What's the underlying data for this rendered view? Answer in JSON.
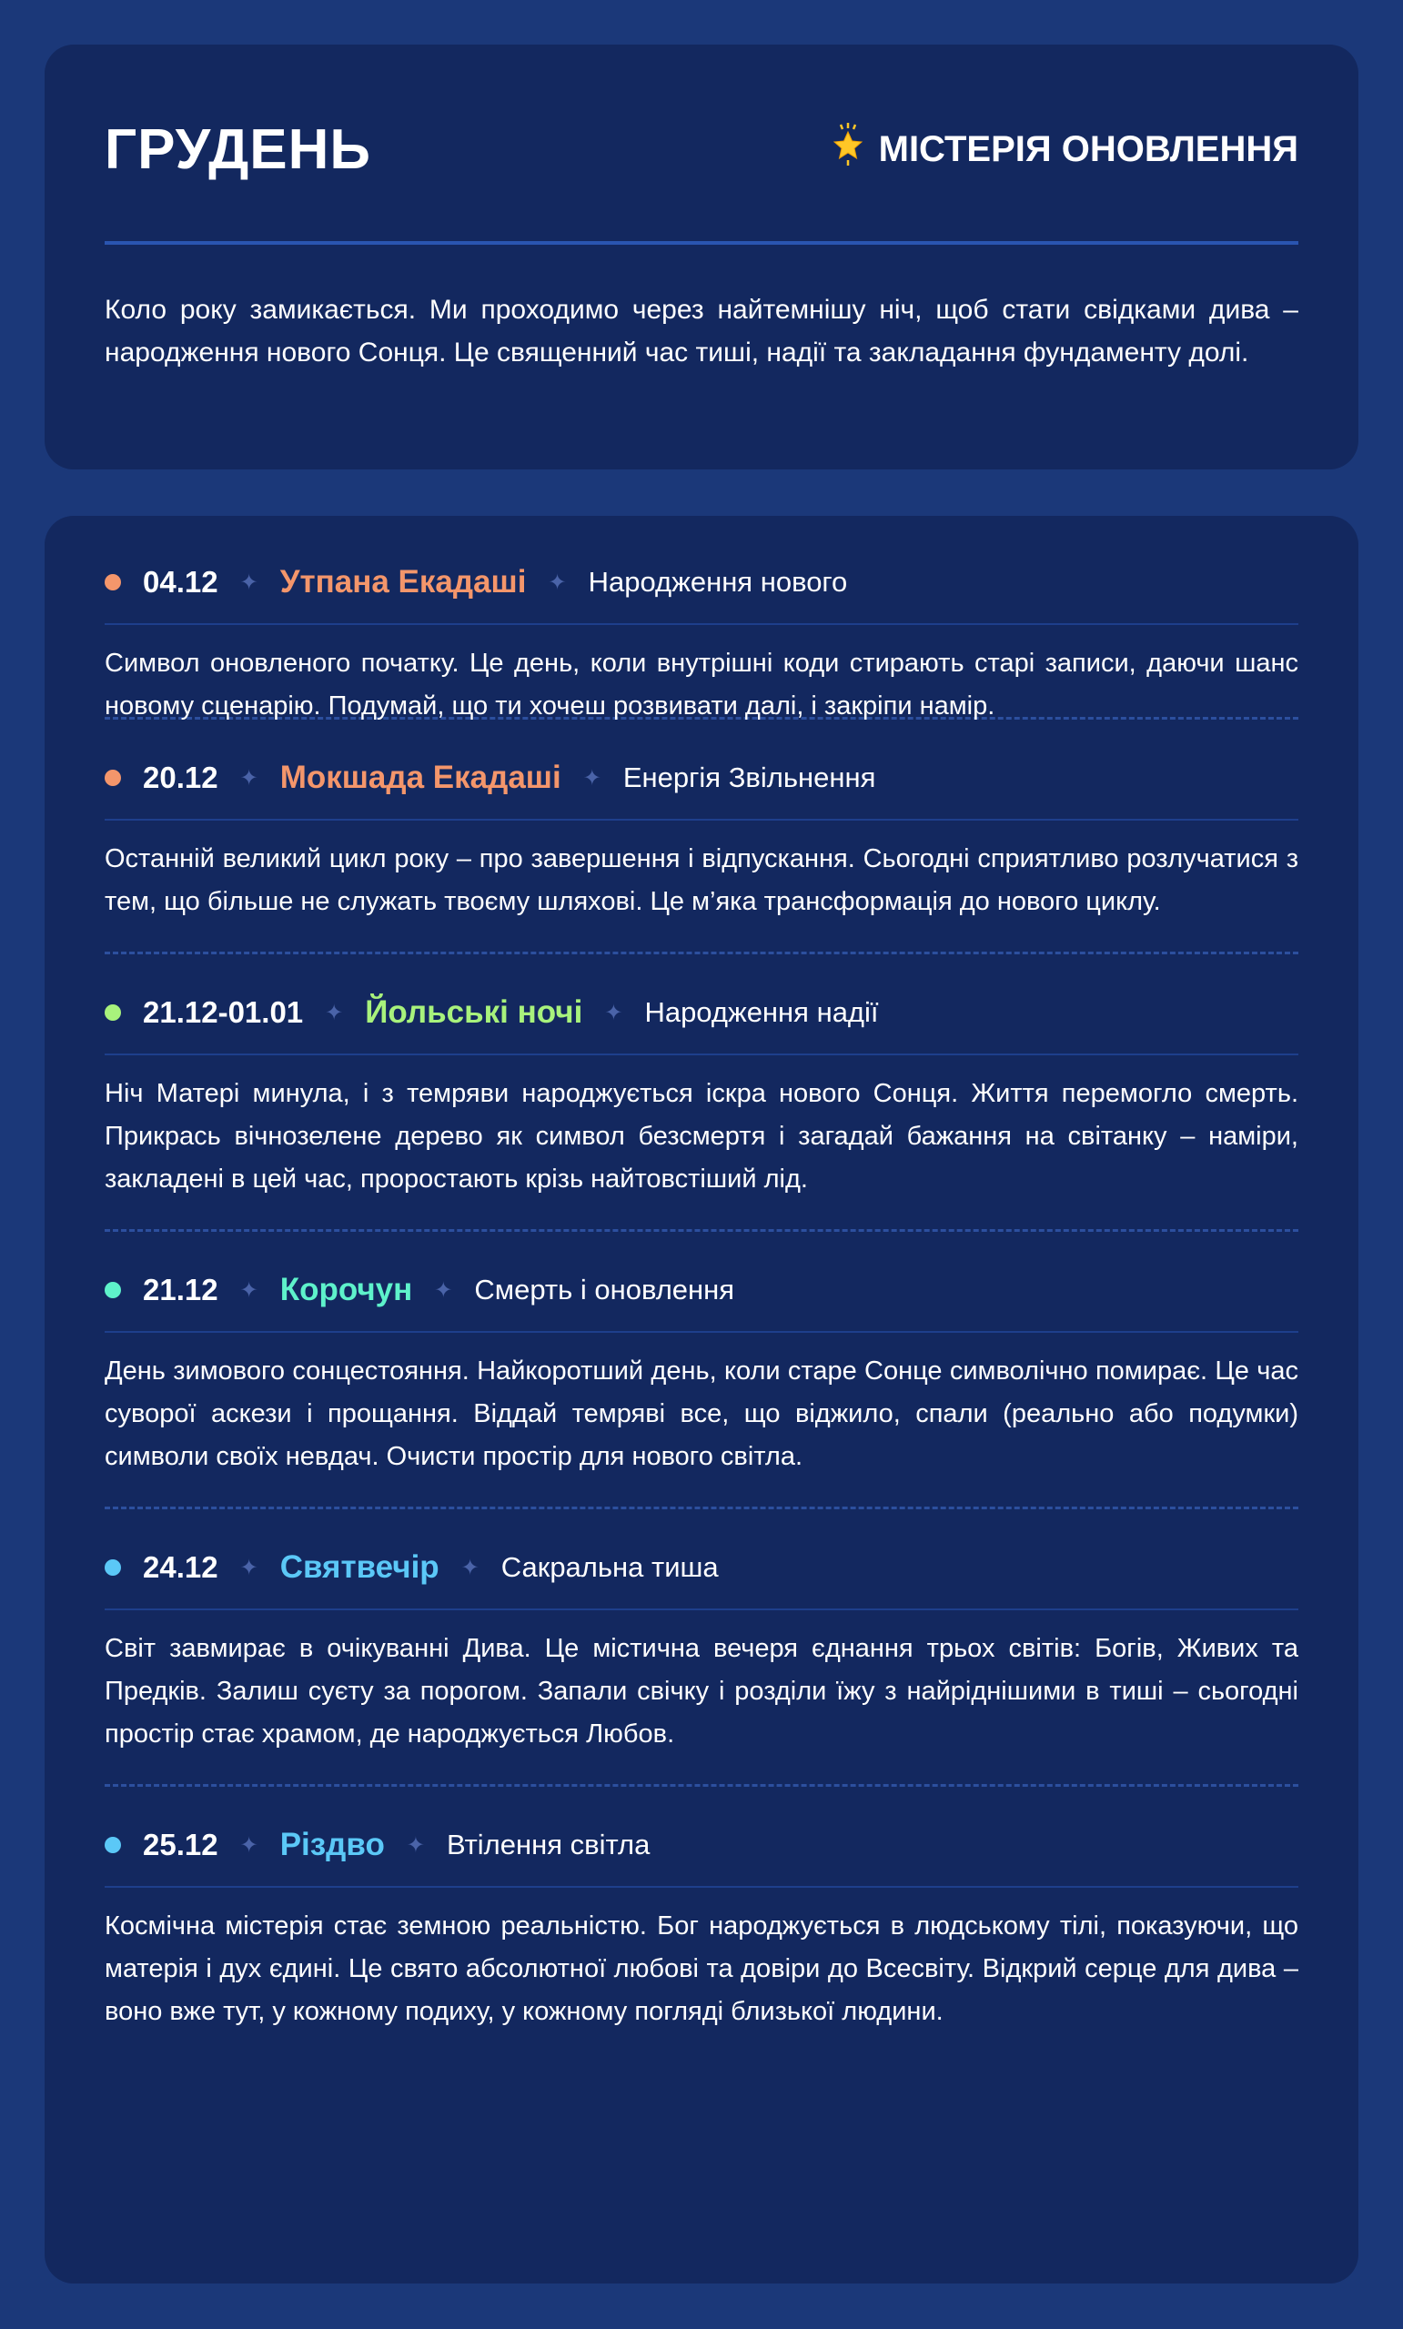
{
  "intro": {
    "title": "ГРУДЕНЬ",
    "subtitle_icon": "glowing-star-icon",
    "subtitle": "МІСТЕРІЯ ОНОВЛЕННЯ",
    "text": "Коло року замикається. Ми проходимо через найтемнішу ніч, щоб стати свідками дива – народження нового Сонця. Це священний час тиші, надії та закладання фундаменту долі."
  },
  "separator_icon": "four-point-star-icon",
  "separator": "✦",
  "events": [
    {
      "date": "04.12",
      "name": "Утпана Екадаші",
      "subtitle": "Народження нового",
      "color": "#f4966b",
      "text": "Символ оновленого початку. Це день, коли внутрішні коди стирають старі записи, даючи шанс новому сценарію. Подумай, що ти хочеш розвивати далі, і закріпи намір."
    },
    {
      "date": "20.12",
      "name": "Мокшада Екадаші",
      "subtitle": "Енергія Звільнення",
      "color": "#f4966b",
      "text": "Останній великий цикл року – про завершення і відпускання. Сьогодні сприятливо розлучатися з тем, що більше не служать твоєму шляхові. Це м’яка трансформація до нового циклу."
    },
    {
      "date": "21.12-01.01",
      "name": "Йольські ночі",
      "subtitle": "Народження надії",
      "color": "#a8f27c",
      "text": "Ніч Матері минула, і з темряви народжується іскра нового Сонця. Життя перемогло смерть. Прикрась вічнозелене дерево як символ безсмертя і загадай бажання на світанку – наміри, закладені в цей час, проростають крізь найтовстіший лід."
    },
    {
      "date": "21.12",
      "name": "Корочун",
      "subtitle": "Смерть і оновлення",
      "color": "#5ef2cb",
      "text": "День зимового сонцестояння. Найкоротший день, коли старе Сонце символічно помирає. Це час суворої аскези і прощання. Віддай темряві все, що віджило, спали (реально або подумки) символи своїх невдач. Очисти простір для нового світла."
    },
    {
      "date": "24.12",
      "name": "Святвечір",
      "subtitle": "Сакральна тиша",
      "color": "#5bc8f7",
      "text": "Світ завмирає в очікуванні Дива. Це містична вечеря єднання трьох світів: Богів, Живих та Предків. Залиш суєту за порогом. Запали свічку і розділи їжу з найріднішими в тиші – сьогодні простір стає храмом, де народжується Любов."
    },
    {
      "date": "25.12",
      "name": "Різдво",
      "subtitle": "Втілення світла",
      "color": "#5bc8f7",
      "text": "Космічна містерія стає земною реальністю. Бог народжується в людському тілі, показуючи, що матерія і дух єдині. Це свято абсолютної любові та довіри до Всесвіту. Відкрий серце для дива – воно вже тут, у кожному подиху, у кожному погляді близької людини."
    }
  ]
}
